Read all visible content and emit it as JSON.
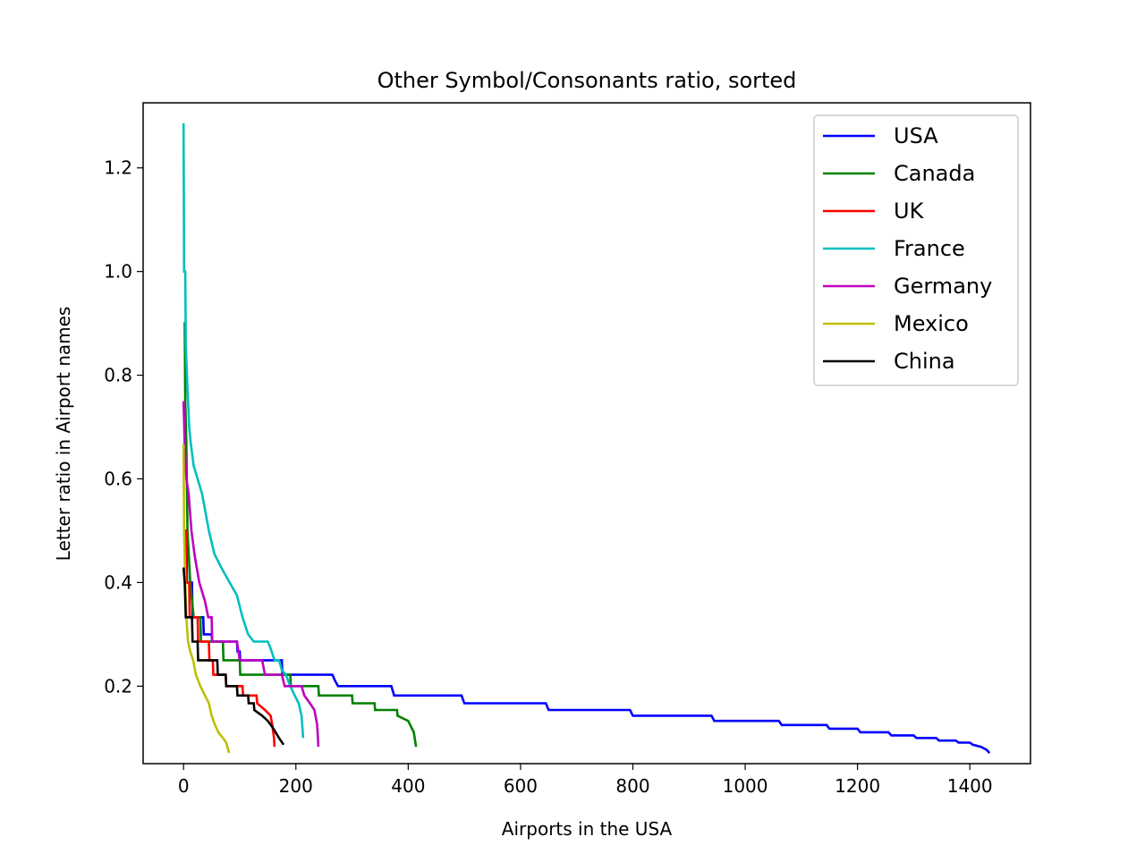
{
  "chart_data": {
    "type": "line",
    "title": "Other Symbol/Consonants ratio, sorted",
    "xlabel": "Airports in the USA",
    "ylabel": "Letter ratio in Airport names",
    "xlim": [
      -72,
      1508
    ],
    "ylim": [
      0.0505,
      1.3255
    ],
    "xticks": [
      0,
      200,
      400,
      600,
      800,
      1000,
      1200,
      1400
    ],
    "yticks": [
      0.2,
      0.4,
      0.6,
      0.8,
      1.0,
      1.2
    ],
    "ytick_labels": [
      "0.2",
      "0.4",
      "0.6",
      "0.8",
      "1.0",
      "1.2"
    ],
    "grid": false,
    "legend_position": "top-right",
    "series": [
      {
        "name": "USA",
        "color": "#0000ff",
        "points": [
          [
            0,
            0.5
          ],
          [
            5,
            0.5
          ],
          [
            6,
            0.4
          ],
          [
            15,
            0.4
          ],
          [
            16,
            0.333
          ],
          [
            35,
            0.333
          ],
          [
            36,
            0.3
          ],
          [
            50,
            0.3
          ],
          [
            51,
            0.286
          ],
          [
            95,
            0.286
          ],
          [
            96,
            0.267
          ],
          [
            100,
            0.267
          ],
          [
            101,
            0.25
          ],
          [
            175,
            0.25
          ],
          [
            176,
            0.222
          ],
          [
            265,
            0.222
          ],
          [
            270,
            0.21
          ],
          [
            275,
            0.2
          ],
          [
            370,
            0.2
          ],
          [
            375,
            0.182
          ],
          [
            495,
            0.182
          ],
          [
            500,
            0.167
          ],
          [
            645,
            0.167
          ],
          [
            650,
            0.154
          ],
          [
            795,
            0.154
          ],
          [
            800,
            0.143
          ],
          [
            940,
            0.143
          ],
          [
            945,
            0.133
          ],
          [
            1060,
            0.133
          ],
          [
            1065,
            0.125
          ],
          [
            1145,
            0.125
          ],
          [
            1150,
            0.118
          ],
          [
            1200,
            0.118
          ],
          [
            1205,
            0.111
          ],
          [
            1255,
            0.111
          ],
          [
            1260,
            0.105
          ],
          [
            1300,
            0.105
          ],
          [
            1305,
            0.1
          ],
          [
            1340,
            0.1
          ],
          [
            1345,
            0.095
          ],
          [
            1375,
            0.095
          ],
          [
            1380,
            0.091
          ],
          [
            1400,
            0.091
          ],
          [
            1405,
            0.087
          ],
          [
            1420,
            0.083
          ],
          [
            1430,
            0.077
          ],
          [
            1435,
            0.071
          ]
        ]
      },
      {
        "name": "Canada",
        "color": "#008000",
        "points": [
          [
            0,
            0.9
          ],
          [
            2,
            0.9
          ],
          [
            3,
            0.75
          ],
          [
            5,
            0.67
          ],
          [
            7,
            0.5
          ],
          [
            12,
            0.4
          ],
          [
            18,
            0.333
          ],
          [
            30,
            0.333
          ],
          [
            31,
            0.286
          ],
          [
            70,
            0.286
          ],
          [
            71,
            0.25
          ],
          [
            100,
            0.25
          ],
          [
            101,
            0.222
          ],
          [
            190,
            0.222
          ],
          [
            191,
            0.2
          ],
          [
            240,
            0.2
          ],
          [
            241,
            0.182
          ],
          [
            300,
            0.182
          ],
          [
            301,
            0.167
          ],
          [
            340,
            0.167
          ],
          [
            341,
            0.154
          ],
          [
            380,
            0.154
          ],
          [
            381,
            0.143
          ],
          [
            400,
            0.133
          ],
          [
            410,
            0.111
          ],
          [
            414,
            0.083
          ]
        ]
      },
      {
        "name": "UK",
        "color": "#ff0000",
        "points": [
          [
            0,
            0.5
          ],
          [
            4,
            0.5
          ],
          [
            5,
            0.4
          ],
          [
            10,
            0.4
          ],
          [
            11,
            0.333
          ],
          [
            25,
            0.333
          ],
          [
            26,
            0.286
          ],
          [
            45,
            0.286
          ],
          [
            46,
            0.25
          ],
          [
            52,
            0.25
          ],
          [
            53,
            0.222
          ],
          [
            75,
            0.222
          ],
          [
            76,
            0.2
          ],
          [
            105,
            0.2
          ],
          [
            106,
            0.182
          ],
          [
            130,
            0.182
          ],
          [
            131,
            0.167
          ],
          [
            145,
            0.154
          ],
          [
            155,
            0.143
          ],
          [
            158,
            0.125
          ],
          [
            161,
            0.1
          ],
          [
            162,
            0.083
          ]
        ]
      },
      {
        "name": "France",
        "color": "#00bfbf",
        "points": [
          [
            0,
            1.286
          ],
          [
            1,
            1.0
          ],
          [
            3,
            1.0
          ],
          [
            4,
            0.857
          ],
          [
            6,
            0.8
          ],
          [
            8,
            0.75
          ],
          [
            10,
            0.7
          ],
          [
            13,
            0.667
          ],
          [
            18,
            0.625
          ],
          [
            25,
            0.6
          ],
          [
            33,
            0.571
          ],
          [
            45,
            0.5
          ],
          [
            55,
            0.455
          ],
          [
            67,
            0.429
          ],
          [
            82,
            0.4
          ],
          [
            95,
            0.375
          ],
          [
            105,
            0.333
          ],
          [
            115,
            0.3
          ],
          [
            125,
            0.286
          ],
          [
            150,
            0.286
          ],
          [
            155,
            0.273
          ],
          [
            162,
            0.25
          ],
          [
            170,
            0.25
          ],
          [
            175,
            0.231
          ],
          [
            182,
            0.222
          ],
          [
            190,
            0.2
          ],
          [
            198,
            0.182
          ],
          [
            205,
            0.167
          ],
          [
            210,
            0.143
          ],
          [
            213,
            0.1
          ]
        ]
      },
      {
        "name": "Germany",
        "color": "#bf00bf",
        "points": [
          [
            0,
            0.75
          ],
          [
            2,
            0.667
          ],
          [
            5,
            0.6
          ],
          [
            9,
            0.571
          ],
          [
            14,
            0.5
          ],
          [
            20,
            0.45
          ],
          [
            28,
            0.4
          ],
          [
            38,
            0.364
          ],
          [
            44,
            0.333
          ],
          [
            50,
            0.333
          ],
          [
            51,
            0.286
          ],
          [
            95,
            0.286
          ],
          [
            100,
            0.25
          ],
          [
            140,
            0.25
          ],
          [
            145,
            0.222
          ],
          [
            175,
            0.222
          ],
          [
            180,
            0.2
          ],
          [
            210,
            0.2
          ],
          [
            215,
            0.182
          ],
          [
            225,
            0.167
          ],
          [
            233,
            0.154
          ],
          [
            238,
            0.125
          ],
          [
            240,
            0.083
          ]
        ]
      },
      {
        "name": "Mexico",
        "color": "#bfbf00",
        "points": [
          [
            0,
            0.667
          ],
          [
            1,
            0.5
          ],
          [
            3,
            0.4
          ],
          [
            5,
            0.333
          ],
          [
            8,
            0.286
          ],
          [
            12,
            0.267
          ],
          [
            17,
            0.25
          ],
          [
            22,
            0.222
          ],
          [
            30,
            0.2
          ],
          [
            38,
            0.182
          ],
          [
            45,
            0.167
          ],
          [
            50,
            0.143
          ],
          [
            56,
            0.125
          ],
          [
            62,
            0.111
          ],
          [
            70,
            0.1
          ],
          [
            76,
            0.091
          ],
          [
            81,
            0.071
          ]
        ]
      },
      {
        "name": "China",
        "color": "#000000",
        "points": [
          [
            0,
            0.429
          ],
          [
            2,
            0.4
          ],
          [
            4,
            0.333
          ],
          [
            15,
            0.333
          ],
          [
            16,
            0.286
          ],
          [
            25,
            0.286
          ],
          [
            26,
            0.25
          ],
          [
            60,
            0.25
          ],
          [
            61,
            0.222
          ],
          [
            75,
            0.222
          ],
          [
            76,
            0.2
          ],
          [
            95,
            0.2
          ],
          [
            96,
            0.182
          ],
          [
            115,
            0.182
          ],
          [
            116,
            0.167
          ],
          [
            125,
            0.167
          ],
          [
            126,
            0.154
          ],
          [
            140,
            0.143
          ],
          [
            150,
            0.133
          ],
          [
            160,
            0.118
          ],
          [
            170,
            0.1
          ],
          [
            178,
            0.087
          ]
        ]
      }
    ]
  }
}
